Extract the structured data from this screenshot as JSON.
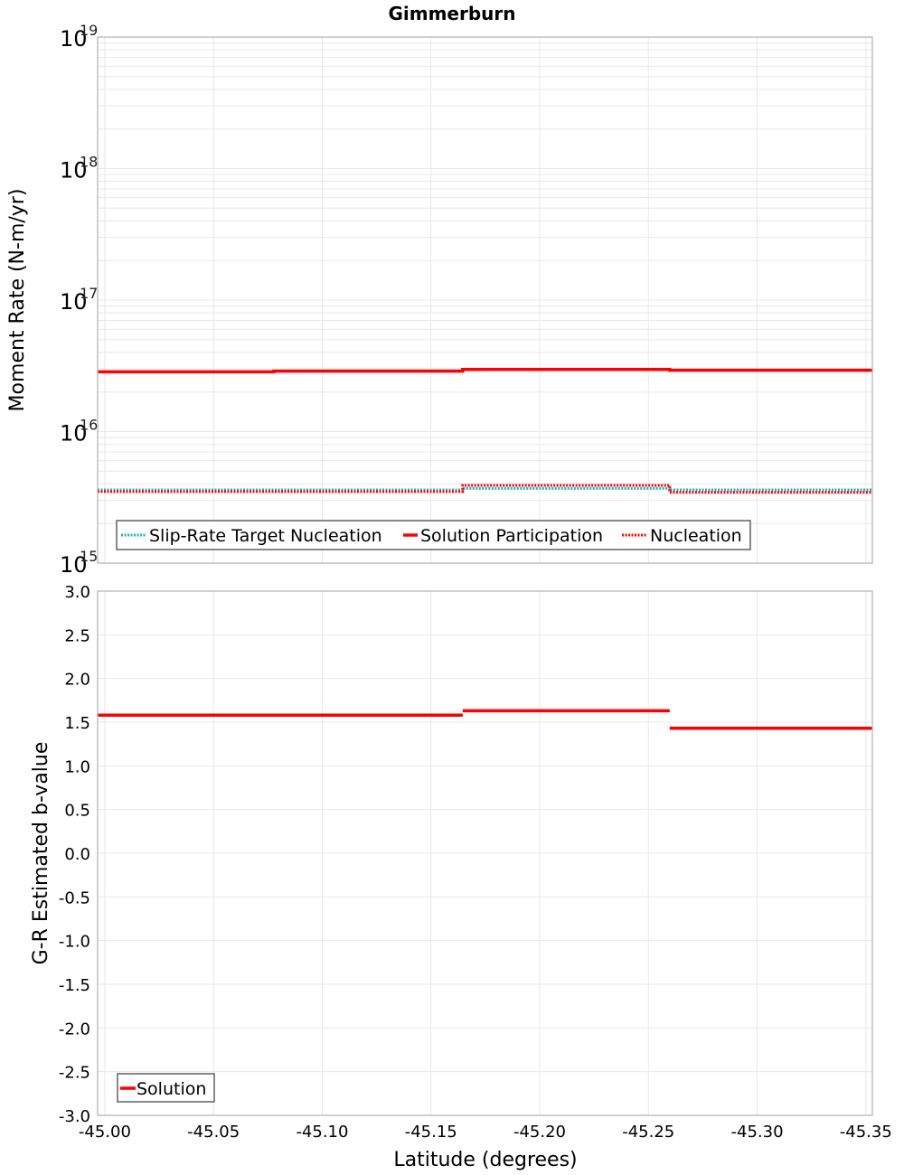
{
  "title": "Gimmerburn",
  "colors": {
    "solution": "#ff0000",
    "nucleation": "#ff0000",
    "target": "#1fb3c0",
    "grid": "#e8e8e8",
    "frame": "#b0b0b0",
    "legend_border": "#606060"
  },
  "chart_data": [
    {
      "type": "line",
      "title": "Gimmerburn",
      "xlabel": "Latitude (degrees)",
      "ylabel": "Moment Rate (N-m/yr)",
      "yscale": "log",
      "ylim": [
        1000000000000000.0,
        1e+19
      ],
      "xlim": [
        -44.9967,
        -45.353
      ],
      "x_ticks": [
        "-45.00",
        "-45.05",
        "-45.10",
        "-45.15",
        "-45.20",
        "-45.25",
        "-45.30",
        "-45.35"
      ],
      "y_ticks": [
        {
          "base": "10",
          "exp": "19"
        },
        {
          "base": "10",
          "exp": "18"
        },
        {
          "base": "10",
          "exp": "17"
        },
        {
          "base": "10",
          "exp": "16"
        },
        {
          "base": "10",
          "exp": "15"
        }
      ],
      "grid": true,
      "legend_position": "lower-left",
      "series": [
        {
          "name": "Slip-Rate Target Nucleation",
          "style": "dotted",
          "color": "#1fb3c0",
          "step_x": [
            -44.9967,
            -45.0777,
            -45.1646,
            -45.2598,
            -45.353
          ],
          "values": [
            3600000000000000.0,
            3600000000000000.0,
            3700000000000000.0,
            3600000000000000.0
          ]
        },
        {
          "name": "Solution Participation",
          "style": "solid",
          "color": "#ff0000",
          "step_x": [
            -44.9967,
            -45.0777,
            -45.1646,
            -45.2598,
            -45.353
          ],
          "values": [
            2.85e+16,
            2.88e+16,
            2.97e+16,
            2.93e+16
          ]
        },
        {
          "name": "Nucleation",
          "style": "dotted",
          "color": "#ff0000",
          "step_x": [
            -44.9967,
            -45.0777,
            -45.1646,
            -45.2598,
            -45.353
          ],
          "values": [
            3500000000000000.0,
            3500000000000000.0,
            3900000000000000.0,
            3450000000000000.0
          ]
        }
      ]
    },
    {
      "type": "line",
      "xlabel": "Latitude (degrees)",
      "ylabel": "G-R Estimated b-value",
      "yscale": "linear",
      "ylim": [
        -3.0,
        3.0
      ],
      "xlim": [
        -44.9967,
        -45.353
      ],
      "x_ticks": [
        "-45.00",
        "-45.05",
        "-45.10",
        "-45.15",
        "-45.20",
        "-45.25",
        "-45.30",
        "-45.35"
      ],
      "y_ticks": [
        "3.0",
        "2.5",
        "2.0",
        "1.5",
        "1.0",
        "0.5",
        "0.0",
        "-0.5",
        "-1.0",
        "-1.5",
        "-2.0",
        "-2.5",
        "-3.0"
      ],
      "grid": true,
      "legend_position": "lower-left",
      "series": [
        {
          "name": "Solution",
          "style": "solid",
          "color": "#ff0000",
          "step_x": [
            -44.9967,
            -45.1646,
            -45.2598,
            -45.353
          ],
          "values": [
            1.58,
            1.63,
            1.43
          ]
        }
      ]
    }
  ],
  "top_panel": {
    "ylabel": "Moment Rate (N-m/yr)",
    "legend": [
      "Slip-Rate Target Nucleation",
      "Solution Participation",
      "Nucleation"
    ]
  },
  "bottom_panel": {
    "ylabel": "G-R Estimated b-value",
    "xlabel": "Latitude (degrees)",
    "legend": [
      "Solution"
    ]
  }
}
